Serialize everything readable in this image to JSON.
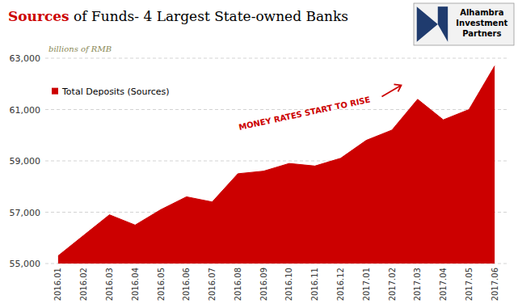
{
  "chart_data": {
    "type": "area",
    "title": "Sources of Funds- 4 Largest State-owned Banks",
    "subtitle": "billions of RMB",
    "annotations": [
      "MONEY RATES START TO RISE"
    ],
    "logo": [
      "Alhambra",
      "Investment",
      "Partners"
    ],
    "categories": [
      "2016.01",
      "2016.02",
      "2016.03",
      "2016.04",
      "2016.05",
      "2016.06",
      "2016.07",
      "2016.08",
      "2016.09",
      "2016.10",
      "2016.11",
      "2016.12",
      "2017.01",
      "2017.02",
      "2017.03",
      "2017.04",
      "2017.05",
      "2017.06"
    ],
    "series": [
      {
        "name": "Total Deposits (Sources)",
        "color": "#cc0000",
        "values": [
          55300,
          56100,
          56900,
          56500,
          57100,
          57600,
          57400,
          58500,
          58600,
          58900,
          58800,
          59100,
          59800,
          60200,
          61400,
          60600,
          61000,
          62700
        ]
      }
    ],
    "ylim": [
      55000,
      63000
    ],
    "yticks": [
      {
        "value": 55000,
        "label": "55,000"
      },
      {
        "value": 57000,
        "label": "57,000"
      },
      {
        "value": 59000,
        "label": "59,000"
      },
      {
        "value": 61000,
        "label": "61,000"
      },
      {
        "value": 63000,
        "label": "63,000"
      }
    ],
    "grid": true,
    "legend": "upper left"
  }
}
